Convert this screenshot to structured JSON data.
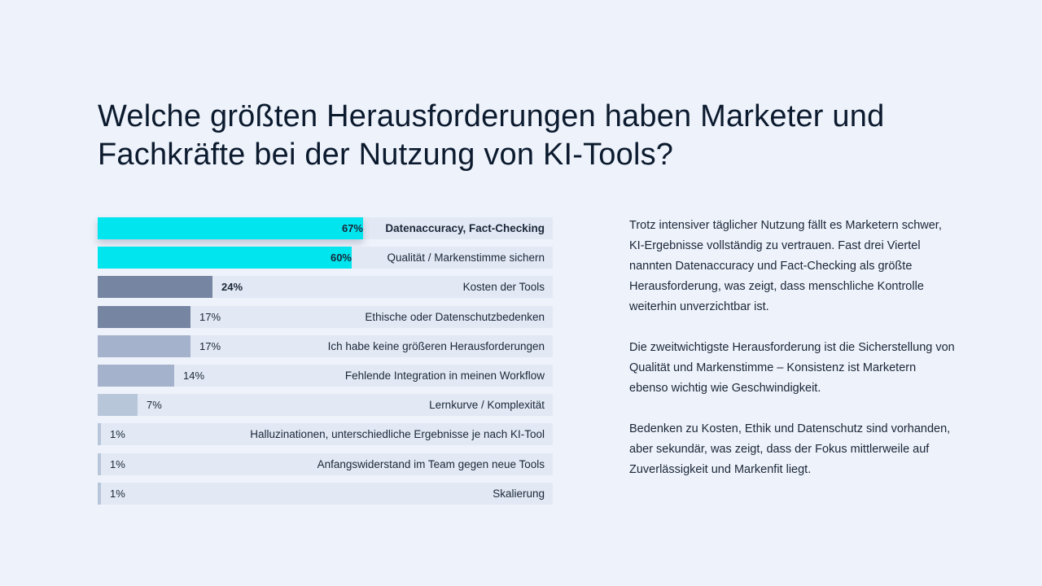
{
  "title": "Welche größten Herausforderungen haben Marketer und Fachkräfte bei der Nutzung von KI-Tools?",
  "chart_data": {
    "type": "bar",
    "orientation": "horizontal",
    "categories": [
      "Datenaccuracy, Fact-Checking",
      "Qualität / Markenstimme sichern",
      "Kosten der Tools",
      "Ethische oder Datenschutzbedenken",
      "Ich habe keine größeren Herausforderungen",
      "Fehlende Integration in meinen Workflow",
      "Lernkurve / Komplexität",
      "Halluzinationen, unterschiedliche Ergebnisse je nach KI-Tool",
      "Anfangswiderstand im Team gegen neue Tools",
      "Skalierung"
    ],
    "values": [
      67,
      60,
      24,
      17,
      17,
      14,
      7,
      1,
      1,
      1
    ],
    "value_labels": [
      "67%",
      "60%",
      "24%",
      "17%",
      "17%",
      "14%",
      "7%",
      "1%",
      "1%",
      "1%"
    ],
    "colors": [
      "#00E5EE",
      "#00E5EE",
      "#7585A2",
      "#7585A2",
      "#A5B2CB",
      "#A5B2CB",
      "#B8C6DA",
      "#B8C6DA",
      "#B8C6DA",
      "#B8C6DA"
    ],
    "track_color": "#E2E9F4",
    "grid": false
  },
  "paragraphs": [
    "Trotz intensiver täglicher Nutzung fällt es Marketern schwer, KI-Ergebnisse vollständig zu vertrauen. Fast drei Viertel nannten Datenaccuracy und Fact-Checking als größte Herausforderung, was zeigt, dass menschliche Kontrolle weiterhin unverzichtbar ist.",
    "Die zweitwichtigste Herausforderung ist die Sicherstellung von Qualität und Markenstimme – Konsistenz ist Marketern ebenso wichtig wie Geschwindigkeit.",
    "Bedenken zu Kosten, Ethik und Datenschutz sind vorhanden, aber sekundär, was zeigt, dass der Fokus mittlerweile auf Zuverlässigkeit und Markenfit liegt."
  ]
}
